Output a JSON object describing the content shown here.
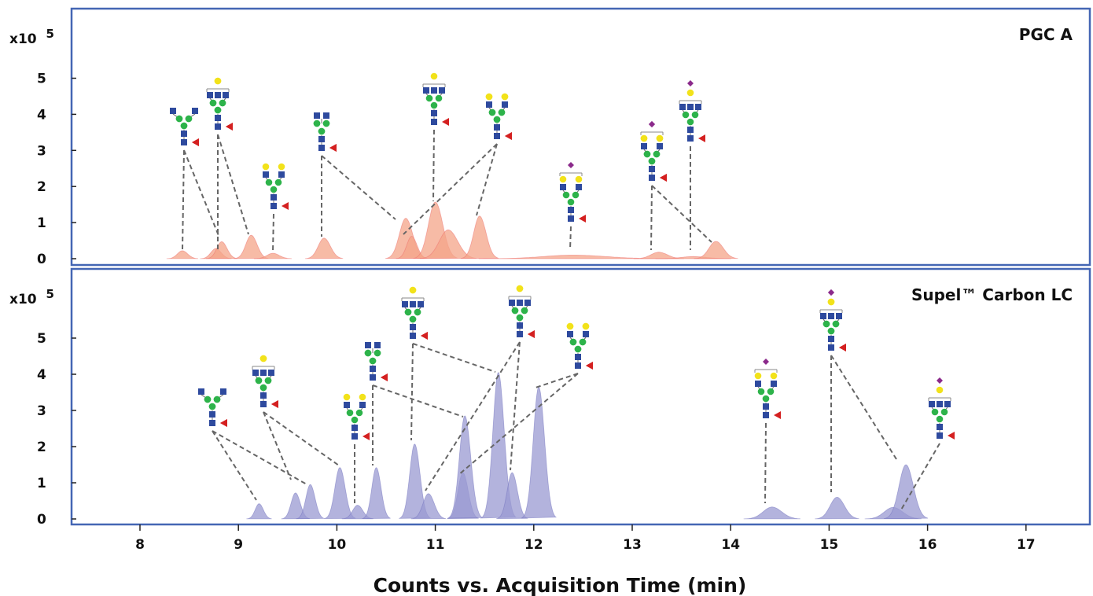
{
  "chart_data": {
    "type": "area",
    "xlabel": "Counts vs. Acquisition Time (min)",
    "xlim": [
      7.3,
      17.7
    ],
    "x_ticks": [
      8,
      9,
      10,
      11,
      12,
      13,
      14,
      15,
      16,
      17
    ],
    "x_tick_labels": [
      "8",
      "9",
      "10",
      "11",
      "12",
      "13",
      "14",
      "15",
      "16",
      "17"
    ],
    "colors": {
      "pgc_fill": "#f4a488",
      "pgc_fill_dark": "#ee6a6a",
      "supel_fill": "#9a9ad2",
      "supel_fill_dark": "#6f6fbd",
      "frame": "#4466b4",
      "glcnac": "#2e4a9e",
      "mannose": "#2db34a",
      "galactose": "#f2e21a",
      "fucose": "#d42020",
      "sialic": "#8b2a8b"
    },
    "panels": [
      {
        "title": "PGC A",
        "multiplier_base": "x10",
        "multiplier_exp": "5",
        "ylim": [
          -0.15,
          6.7
        ],
        "y_ticks": [
          0,
          1,
          2,
          3,
          4,
          5
        ],
        "y_tick_labels": [
          "0",
          "1",
          "2",
          "3",
          "4",
          "5"
        ],
        "series": [
          {
            "values": [
              {
                "x": 8.43,
                "y": 0.22,
                "w": 0.05
              }
            ]
          },
          {
            "values": [
              {
                "x": 8.77,
                "y": 0.28,
                "w": 0.05
              }
            ]
          },
          {
            "values": [
              {
                "x": 8.83,
                "y": 0.47,
                "w": 0.05
              }
            ]
          },
          {
            "values": [
              {
                "x": 9.13,
                "y": 0.65,
                "w": 0.055
              }
            ]
          },
          {
            "values": [
              {
                "x": 9.35,
                "y": 0.15,
                "w": 0.06
              }
            ]
          },
          {
            "values": [
              {
                "x": 9.87,
                "y": 0.57,
                "w": 0.06
              }
            ]
          },
          {
            "values": [
              {
                "x": 10.7,
                "y": 1.12,
                "w": 0.065
              }
            ]
          },
          {
            "values": [
              {
                "x": 10.76,
                "y": 0.62,
                "w": 0.05
              }
            ]
          },
          {
            "values": [
              {
                "x": 11.0,
                "y": 1.57,
                "w": 0.07
              }
            ]
          },
          {
            "values": [
              {
                "x": 11.13,
                "y": 0.8,
                "w": 0.09
              }
            ]
          },
          {
            "values": [
              {
                "x": 11.45,
                "y": 1.18,
                "w": 0.06
              }
            ]
          },
          {
            "values": [
              {
                "x": 12.4,
                "y": 0.1,
                "w": 0.3
              }
            ]
          },
          {
            "values": [
              {
                "x": 13.27,
                "y": 0.18,
                "w": 0.08
              }
            ]
          },
          {
            "values": [
              {
                "x": 13.62,
                "y": 0.06,
                "w": 0.12
              }
            ]
          },
          {
            "values": [
              {
                "x": 13.85,
                "y": 0.48,
                "w": 0.07
              }
            ]
          }
        ]
      },
      {
        "title": "Supel™ Carbon LC",
        "multiplier_base": "x10",
        "multiplier_exp": "5",
        "ylim": [
          -0.15,
          6.7
        ],
        "y_ticks": [
          0,
          1,
          2,
          3,
          4,
          5
        ],
        "y_tick_labels": [
          "0",
          "1",
          "2",
          "3",
          "4",
          "5"
        ],
        "series": [
          {
            "values": [
              {
                "x": 9.21,
                "y": 0.42,
                "w": 0.04
              }
            ]
          },
          {
            "values": [
              {
                "x": 9.58,
                "y": 0.72,
                "w": 0.045
              }
            ]
          },
          {
            "values": [
              {
                "x": 9.73,
                "y": 0.95,
                "w": 0.045
              }
            ]
          },
          {
            "values": [
              {
                "x": 10.03,
                "y": 1.42,
                "w": 0.05
              }
            ]
          },
          {
            "values": [
              {
                "x": 10.21,
                "y": 0.38,
                "w": 0.05
              }
            ]
          },
          {
            "values": [
              {
                "x": 10.4,
                "y": 1.42,
                "w": 0.045
              }
            ]
          },
          {
            "values": [
              {
                "x": 10.79,
                "y": 2.07,
                "w": 0.05
              }
            ]
          },
          {
            "values": [
              {
                "x": 10.93,
                "y": 0.7,
                "w": 0.055
              }
            ]
          },
          {
            "values": [
              {
                "x": 11.28,
                "y": 1.28,
                "w": 0.05
              }
            ]
          },
          {
            "values": [
              {
                "x": 11.3,
                "y": 2.85,
                "w": 0.055
              }
            ]
          },
          {
            "values": [
              {
                "x": 11.64,
                "y": 4.05,
                "w": 0.055
              }
            ]
          },
          {
            "values": [
              {
                "x": 11.78,
                "y": 1.28,
                "w": 0.05
              }
            ]
          },
          {
            "values": [
              {
                "x": 12.05,
                "y": 3.65,
                "w": 0.055
              }
            ]
          },
          {
            "values": [
              {
                "x": 14.42,
                "y": 0.33,
                "w": 0.09
              }
            ]
          },
          {
            "values": [
              {
                "x": 15.08,
                "y": 0.6,
                "w": 0.07
              }
            ]
          },
          {
            "values": [
              {
                "x": 15.65,
                "y": 0.32,
                "w": 0.09
              }
            ]
          },
          {
            "values": [
              {
                "x": 15.78,
                "y": 1.5,
                "w": 0.07
              }
            ]
          }
        ]
      }
    ]
  }
}
